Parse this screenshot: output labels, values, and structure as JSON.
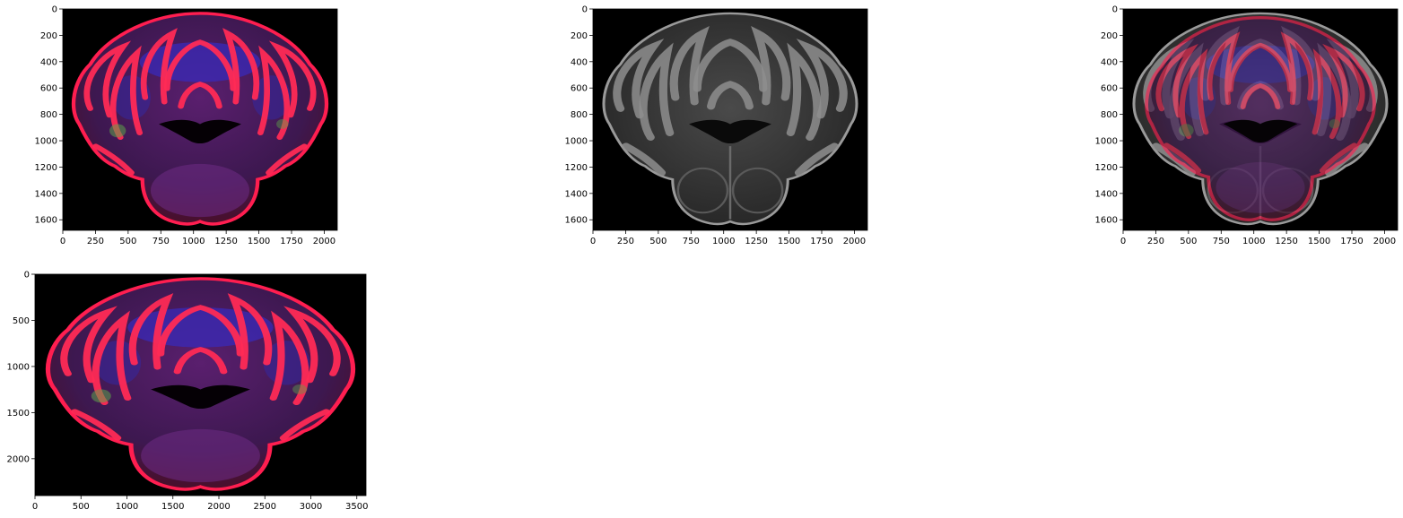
{
  "figure": {
    "colors": {
      "background": "#000000",
      "text": "#000000",
      "axis": "#000000"
    },
    "panels": [
      {
        "id": "fluorescence-section",
        "image": "fluorescence-brain-section-icon",
        "xticks": [
          "0",
          "250",
          "500",
          "750",
          "1000",
          "1250",
          "1500",
          "1750",
          "2000"
        ],
        "yticks": [
          "0",
          "200",
          "400",
          "600",
          "800",
          "1000",
          "1200",
          "1400",
          "1600"
        ],
        "xtick_values": [
          0,
          250,
          500,
          750,
          1000,
          1250,
          1500,
          1750,
          2000
        ],
        "ytick_values": [
          0,
          200,
          400,
          600,
          800,
          1000,
          1200,
          1400,
          1600
        ],
        "xlim": [
          0,
          2100
        ],
        "ylim": [
          0,
          1680
        ]
      },
      {
        "id": "grayscale-template",
        "image": "grayscale-brain-template-icon",
        "xticks": [
          "0",
          "250",
          "500",
          "750",
          "1000",
          "1250",
          "1500",
          "1750",
          "2000"
        ],
        "yticks": [
          "0",
          "200",
          "400",
          "600",
          "800",
          "1000",
          "1200",
          "1400",
          "1600"
        ],
        "xtick_values": [
          0,
          250,
          500,
          750,
          1000,
          1250,
          1500,
          1750,
          2000
        ],
        "ytick_values": [
          0,
          200,
          400,
          600,
          800,
          1000,
          1200,
          1400,
          1600
        ],
        "xlim": [
          0,
          2100
        ],
        "ylim": [
          0,
          1680
        ]
      },
      {
        "id": "overlay",
        "image": "overlay-brain-section-icon",
        "xticks": [
          "0",
          "250",
          "500",
          "750",
          "1000",
          "1250",
          "1500",
          "1750",
          "2000"
        ],
        "yticks": [
          "0",
          "200",
          "400",
          "600",
          "800",
          "1000",
          "1200",
          "1400",
          "1600"
        ],
        "xtick_values": [
          0,
          250,
          500,
          750,
          1000,
          1250,
          1500,
          1750,
          2000
        ],
        "ytick_values": [
          0,
          200,
          400,
          600,
          800,
          1000,
          1200,
          1400,
          1600
        ],
        "xlim": [
          0,
          2100
        ],
        "ylim": [
          0,
          1680
        ]
      },
      {
        "id": "fullres-section",
        "image": "fluorescence-fullres-section-icon",
        "xticks": [
          "0",
          "500",
          "1000",
          "1500",
          "2000",
          "2500",
          "3000",
          "3500"
        ],
        "yticks": [
          "0",
          "500",
          "1000",
          "1500",
          "2000"
        ],
        "xtick_values": [
          0,
          500,
          1000,
          1500,
          2000,
          2500,
          3000,
          3500
        ],
        "ytick_values": [
          0,
          500,
          1000,
          1500,
          2000
        ],
        "xlim": [
          0,
          3600
        ],
        "ylim": [
          0,
          2400
        ]
      }
    ]
  }
}
